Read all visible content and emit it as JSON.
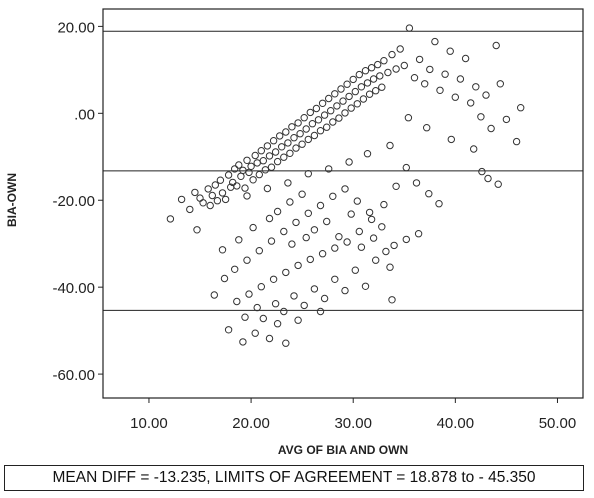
{
  "chart_data": {
    "type": "scatter",
    "xlabel": "AVG OF BIA AND OWN",
    "ylabel": "BIA-OWN",
    "xlim": [
      5.5,
      52.5
    ],
    "ylim": [
      -65.5,
      24
    ],
    "x_ticks": [
      10,
      20,
      30,
      40,
      50
    ],
    "y_ticks": [
      20,
      0,
      -20,
      -40,
      -60
    ],
    "x_tick_labels": [
      "10.00",
      "20.00",
      "30.00",
      "40.00",
      "50.00"
    ],
    "y_tick_labels": [
      "20.00",
      ".00",
      "-20.00",
      "-40.00",
      "-60.00"
    ],
    "grid": false,
    "reference_lines": [
      {
        "name": "upper limit of agreement",
        "y": 18.878
      },
      {
        "name": "mean difference",
        "y": -13.235
      },
      {
        "name": "lower limit of agreement",
        "y": -45.35
      }
    ],
    "caption": "MEAN DIFF = -13.235, LIMITS OF AGREEMENT = 18.878 to - 45.350",
    "marker": {
      "shape": "open-circle",
      "color": "#333333"
    },
    "series": [
      {
        "points": [
          [
            12.1,
            -24.3
          ],
          [
            13.2,
            -19.8
          ],
          [
            14.0,
            -22.1
          ],
          [
            14.5,
            -18.2
          ],
          [
            14.7,
            -26.8
          ],
          [
            15.0,
            -19.5
          ],
          [
            15.3,
            -20.6
          ],
          [
            15.8,
            -17.4
          ],
          [
            16.0,
            -21.2
          ],
          [
            16.2,
            -18.9
          ],
          [
            16.5,
            -16.5
          ],
          [
            16.7,
            -20.1
          ],
          [
            17.0,
            -15.4
          ],
          [
            17.2,
            -18.3
          ],
          [
            17.5,
            -19.8
          ],
          [
            17.8,
            -14.2
          ],
          [
            18.0,
            -17.0
          ],
          [
            18.2,
            -15.9
          ],
          [
            18.4,
            -12.8
          ],
          [
            18.6,
            -16.7
          ],
          [
            18.8,
            -11.9
          ],
          [
            19.0,
            -14.5
          ],
          [
            19.2,
            -13.1
          ],
          [
            19.4,
            -17.2
          ],
          [
            19.6,
            -10.8
          ],
          [
            19.8,
            -13.6
          ],
          [
            20.0,
            -12.2
          ],
          [
            20.2,
            -15.3
          ],
          [
            20.4,
            -9.7
          ],
          [
            20.6,
            -11.4
          ],
          [
            20.8,
            -14.1
          ],
          [
            21.0,
            -8.6
          ],
          [
            21.2,
            -10.9
          ],
          [
            21.4,
            -13.0
          ],
          [
            21.6,
            -7.5
          ],
          [
            21.8,
            -9.8
          ],
          [
            22.0,
            -12.4
          ],
          [
            22.2,
            -6.3
          ],
          [
            22.4,
            -8.9
          ],
          [
            22.6,
            -11.1
          ],
          [
            22.8,
            -5.2
          ],
          [
            23.0,
            -7.7
          ],
          [
            23.2,
            -10.1
          ],
          [
            23.4,
            -4.3
          ],
          [
            23.6,
            -6.8
          ],
          [
            23.8,
            -9.2
          ],
          [
            24.0,
            -3.1
          ],
          [
            24.2,
            -5.6
          ],
          [
            24.4,
            -8.0
          ],
          [
            24.6,
            -2.2
          ],
          [
            24.8,
            -4.7
          ],
          [
            25.0,
            -7.1
          ],
          [
            25.2,
            -1.0
          ],
          [
            25.4,
            -3.6
          ],
          [
            25.6,
            -6.0
          ],
          [
            25.8,
            0.2
          ],
          [
            26.0,
            -2.4
          ],
          [
            26.2,
            -5.1
          ],
          [
            26.4,
            1.1
          ],
          [
            26.6,
            -1.5
          ],
          [
            26.8,
            -4.0
          ],
          [
            27.0,
            2.3
          ],
          [
            27.2,
            -0.4
          ],
          [
            27.4,
            -3.2
          ],
          [
            27.6,
            3.4
          ],
          [
            27.8,
            0.6
          ],
          [
            28.0,
            -2.0
          ],
          [
            28.2,
            4.5
          ],
          [
            28.4,
            1.7
          ],
          [
            28.6,
            -1.1
          ],
          [
            28.8,
            5.6
          ],
          [
            29.0,
            2.8
          ],
          [
            29.2,
            0.1
          ],
          [
            29.4,
            6.7
          ],
          [
            29.6,
            3.9
          ],
          [
            29.8,
            1.2
          ],
          [
            30.0,
            7.8
          ],
          [
            30.2,
            5.0
          ],
          [
            30.4,
            2.2
          ],
          [
            30.6,
            8.9
          ],
          [
            30.8,
            6.1
          ],
          [
            31.0,
            3.3
          ],
          [
            31.2,
            9.8
          ],
          [
            31.4,
            7.0
          ],
          [
            31.6,
            4.4
          ],
          [
            31.8,
            10.5
          ],
          [
            32.0,
            7.9
          ],
          [
            32.2,
            5.2
          ],
          [
            32.4,
            11.2
          ],
          [
            32.6,
            8.6
          ],
          [
            32.8,
            6.0
          ],
          [
            33.0,
            12.1
          ],
          [
            33.4,
            9.4
          ],
          [
            33.8,
            13.5
          ],
          [
            34.2,
            10.2
          ],
          [
            34.6,
            14.8
          ],
          [
            35.0,
            11.0
          ],
          [
            35.5,
            19.6
          ],
          [
            36.0,
            8.2
          ],
          [
            36.5,
            12.4
          ],
          [
            37.0,
            6.8
          ],
          [
            37.5,
            10.1
          ],
          [
            38.0,
            16.5
          ],
          [
            38.5,
            5.3
          ],
          [
            39.0,
            9.0
          ],
          [
            39.5,
            14.3
          ],
          [
            40.0,
            3.7
          ],
          [
            40.5,
            7.9
          ],
          [
            41.0,
            12.6
          ],
          [
            41.5,
            2.4
          ],
          [
            42.0,
            6.1
          ],
          [
            42.5,
            -0.8
          ],
          [
            43.0,
            4.2
          ],
          [
            43.5,
            -3.5
          ],
          [
            44.0,
            15.6
          ],
          [
            44.4,
            6.8
          ],
          [
            45.0,
            -1.4
          ],
          [
            46.0,
            -6.5
          ],
          [
            46.4,
            1.3
          ],
          [
            41.8,
            -8.2
          ],
          [
            43.2,
            -15.0
          ],
          [
            44.2,
            -16.3
          ],
          [
            42.6,
            -13.4
          ],
          [
            39.6,
            -6.0
          ],
          [
            37.2,
            -3.3
          ],
          [
            35.4,
            -1.0
          ],
          [
            33.6,
            -7.4
          ],
          [
            31.4,
            -9.3
          ],
          [
            29.6,
            -11.2
          ],
          [
            27.6,
            -12.8
          ],
          [
            25.6,
            -13.9
          ],
          [
            23.6,
            -16.0
          ],
          [
            21.6,
            -17.3
          ],
          [
            19.6,
            -19.0
          ],
          [
            35.2,
            -12.5
          ],
          [
            34.2,
            -16.8
          ],
          [
            33.0,
            -21.0
          ],
          [
            31.8,
            -24.4
          ],
          [
            30.6,
            -27.2
          ],
          [
            29.4,
            -29.6
          ],
          [
            28.2,
            -31.0
          ],
          [
            27.0,
            -32.3
          ],
          [
            25.8,
            -33.6
          ],
          [
            24.6,
            -35.0
          ],
          [
            23.4,
            -36.6
          ],
          [
            22.2,
            -38.2
          ],
          [
            21.0,
            -39.9
          ],
          [
            19.8,
            -41.6
          ],
          [
            18.6,
            -43.3
          ],
          [
            17.8,
            -49.8
          ],
          [
            19.2,
            -52.6
          ],
          [
            20.4,
            -50.6
          ],
          [
            21.8,
            -51.8
          ],
          [
            22.6,
            -48.4
          ],
          [
            23.4,
            -52.9
          ],
          [
            24.6,
            -47.6
          ],
          [
            26.8,
            -45.6
          ],
          [
            19.4,
            -46.9
          ],
          [
            20.6,
            -44.7
          ],
          [
            22.4,
            -43.8
          ],
          [
            24.2,
            -42.0
          ],
          [
            26.2,
            -40.4
          ],
          [
            28.2,
            -38.2
          ],
          [
            30.2,
            -36.1
          ],
          [
            32.2,
            -33.8
          ],
          [
            33.6,
            -35.4
          ],
          [
            33.8,
            -42.9
          ],
          [
            31.2,
            -39.8
          ],
          [
            29.2,
            -40.8
          ],
          [
            27.2,
            -42.6
          ],
          [
            25.2,
            -44.2
          ],
          [
            23.2,
            -45.6
          ],
          [
            21.2,
            -47.2
          ],
          [
            16.4,
            -41.8
          ],
          [
            17.4,
            -38.0
          ],
          [
            18.4,
            -35.9
          ],
          [
            19.6,
            -33.8
          ],
          [
            20.8,
            -31.6
          ],
          [
            22.0,
            -29.4
          ],
          [
            23.2,
            -27.2
          ],
          [
            24.4,
            -25.1
          ],
          [
            25.6,
            -23.0
          ],
          [
            26.8,
            -21.2
          ],
          [
            28.0,
            -19.1
          ],
          [
            29.2,
            -17.4
          ],
          [
            30.4,
            -20.2
          ],
          [
            31.6,
            -22.8
          ],
          [
            32.8,
            -26.1
          ],
          [
            34.0,
            -30.4
          ],
          [
            35.2,
            -29.0
          ],
          [
            36.4,
            -27.7
          ],
          [
            37.4,
            -18.5
          ],
          [
            38.4,
            -20.8
          ],
          [
            36.2,
            -16.0
          ],
          [
            21.8,
            -24.2
          ],
          [
            22.6,
            -22.6
          ],
          [
            20.2,
            -26.3
          ],
          [
            18.8,
            -29.1
          ],
          [
            17.2,
            -31.4
          ],
          [
            23.8,
            -20.4
          ],
          [
            25.0,
            -18.6
          ],
          [
            26.2,
            -26.8
          ],
          [
            27.4,
            -24.9
          ],
          [
            28.6,
            -28.4
          ],
          [
            29.8,
            -23.2
          ],
          [
            30.8,
            -30.8
          ],
          [
            32.0,
            -28.7
          ],
          [
            33.2,
            -31.8
          ],
          [
            24.0,
            -30.1
          ],
          [
            25.4,
            -28.6
          ]
        ]
      }
    ]
  }
}
